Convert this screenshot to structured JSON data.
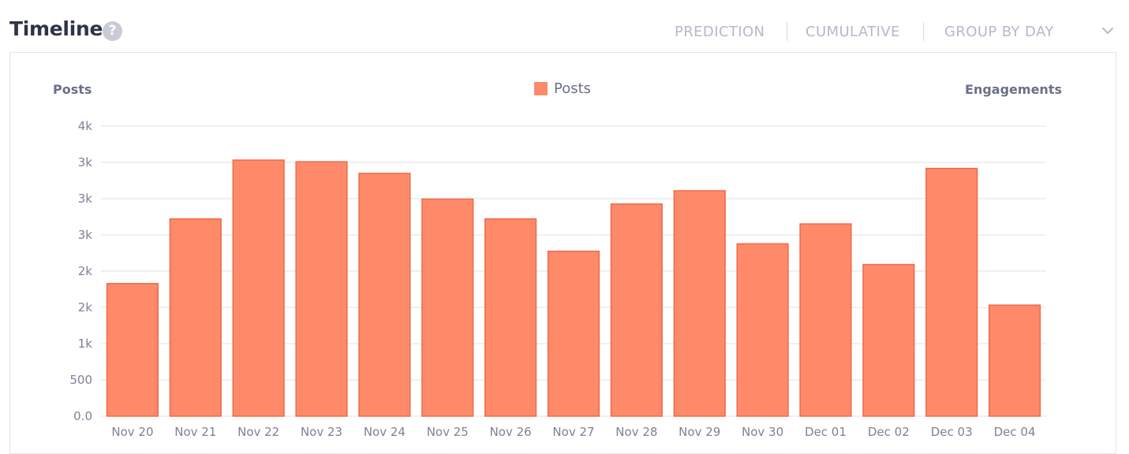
{
  "header": {
    "title": "Timeline",
    "help_icon": "question-circle-icon",
    "buttons": [
      "PREDICTION",
      "CUMULATIVE",
      "GROUP BY DAY"
    ],
    "menu_icon": "chevron-down-icon"
  },
  "colors": {
    "bar_fill": "#fe8a6a",
    "bar_stroke": "#ef6a47",
    "grid": "#dfe1e8",
    "axis_text": "#7d8196"
  },
  "chart_data": {
    "type": "bar",
    "legend": [
      "Posts"
    ],
    "legend_position": "top-center",
    "ylabel_left": "Posts",
    "ylabel_right": "Engagements",
    "y_tick_labels": [
      "0.0",
      "500",
      "1k",
      "2k",
      "2k",
      "3k",
      "3k",
      "3k",
      "4k"
    ],
    "ylim": [
      0,
      3500
    ],
    "grid": true,
    "categories": [
      "Nov 20",
      "Nov 21",
      "Nov 22",
      "Nov 23",
      "Nov 24",
      "Nov 25",
      "Nov 26",
      "Nov 27",
      "Nov 28",
      "Nov 29",
      "Nov 30",
      "Dec 01",
      "Dec 02",
      "Dec 03",
      "Dec 04"
    ],
    "series": [
      {
        "name": "Posts",
        "values": [
          1600,
          2380,
          3090,
          3070,
          2930,
          2620,
          2380,
          1990,
          2560,
          2720,
          2080,
          2320,
          1830,
          2990,
          1340
        ]
      }
    ]
  }
}
